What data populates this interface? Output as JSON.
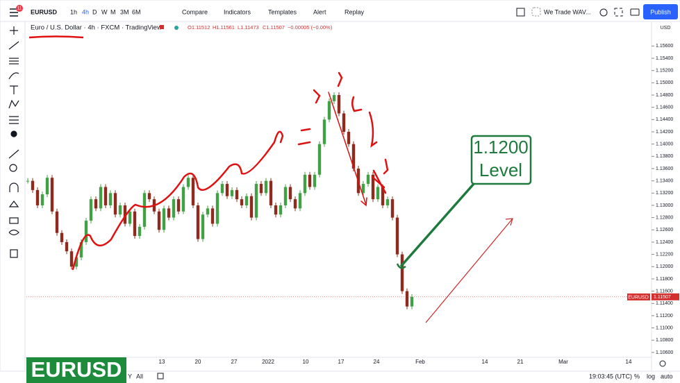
{
  "toolbar": {
    "symbol": "EURUSD",
    "badge": "11",
    "intervals": [
      "1h",
      "4h",
      "D",
      "W",
      "M",
      "3M",
      "6M"
    ],
    "buttons": [
      "Compare",
      "Indicators",
      "Templates",
      "Alert",
      "Replay"
    ],
    "layout_name": "We Trade WAV...",
    "publish": "Publish"
  },
  "legend": {
    "title": "Euro / U.S. Dollar · 4h · FXCM · TradingView",
    "ohlc": [
      "O1.11512",
      "H1.11561",
      "L1.11473",
      "C1.11507",
      "−0.00005 (−0.00%)"
    ]
  },
  "chart": {
    "closes": [
      1.134,
      1.1325,
      1.13,
      1.1318,
      1.1345,
      1.129,
      1.1255,
      1.124,
      1.1225,
      1.12,
      1.1215,
      1.124,
      1.1275,
      1.131,
      1.1295,
      1.133,
      1.13,
      1.132,
      1.1285,
      1.13,
      1.127,
      1.129,
      1.125,
      1.1265,
      1.132,
      1.131,
      1.129,
      1.126,
      1.1295,
      1.128,
      1.131,
      1.129,
      1.133,
      1.1345,
      1.13,
      1.1245,
      1.1285,
      1.1295,
      1.127,
      1.132,
      1.1335,
      1.1315,
      1.1325,
      1.131,
      1.13,
      1.1315,
      1.128,
      1.1335,
      1.132,
      1.134,
      1.13,
      1.1285,
      1.13,
      1.133,
      1.131,
      1.1295,
      1.132,
      1.135,
      1.133,
      1.135,
      1.14,
      1.144,
      1.147,
      1.148,
      1.145,
      1.142,
      1.14,
      1.136,
      1.132,
      1.1335,
      1.135,
      1.131,
      1.133,
      1.13,
      1.131,
      1.128,
      1.122,
      1.116,
      1.1135,
      1.11507
    ],
    "up_color": "#43a047",
    "down_color": "#8d2b1e",
    "price_range": [
      1.1052,
      1.16
    ],
    "price_ticks": [
      {
        "value": 1.106,
        "label": "1.10600"
      },
      {
        "value": 1.108,
        "label": "1.10800"
      },
      {
        "value": 1.11,
        "label": "1.11000"
      },
      {
        "value": 1.112,
        "label": "1.11200"
      },
      {
        "value": 1.114,
        "label": "1.11400"
      },
      {
        "value": 1.116,
        "label": "1.11600"
      },
      {
        "value": 1.118,
        "label": "1.11800"
      },
      {
        "value": 1.12,
        "label": "1.12000"
      },
      {
        "value": 1.122,
        "label": "1.12200"
      },
      {
        "value": 1.124,
        "label": "1.12400"
      },
      {
        "value": 1.126,
        "label": "1.12600"
      },
      {
        "value": 1.128,
        "label": "1.12800"
      },
      {
        "value": 1.13,
        "label": "1.13000"
      },
      {
        "value": 1.132,
        "label": "1.13200"
      },
      {
        "value": 1.134,
        "label": "1.13400"
      },
      {
        "value": 1.136,
        "label": "1.13600"
      },
      {
        "value": 1.138,
        "label": "1.13800"
      },
      {
        "value": 1.14,
        "label": "1.14000"
      },
      {
        "value": 1.142,
        "label": "1.14200"
      },
      {
        "value": 1.144,
        "label": "1.14400"
      },
      {
        "value": 1.146,
        "label": "1.14600"
      },
      {
        "value": 1.148,
        "label": "1.14800"
      },
      {
        "value": 1.15,
        "label": "1.15000"
      },
      {
        "value": 1.152,
        "label": "1.15200"
      },
      {
        "value": 1.154,
        "label": "1.15400"
      },
      {
        "value": 1.156,
        "label": "1.15600"
      }
    ],
    "currency": "USD",
    "last_price": {
      "value": 1.11507,
      "label": "1.11507"
    },
    "symbol_tag": "EURUSD",
    "time_labels": [
      "13",
      "20",
      "27",
      "2022",
      "10",
      "17",
      "24",
      "Feb",
      "14",
      "21",
      "Mar",
      "14"
    ]
  },
  "annotation": {
    "line1": "1.1200",
    "line2": "Level"
  },
  "watermark": "EURUSD",
  "bottom_bar": {
    "ranges": [
      "Y",
      "All"
    ],
    "clock": "19:03:45 (UTC)",
    "percent": "%",
    "log": "log",
    "auto": "auto"
  }
}
